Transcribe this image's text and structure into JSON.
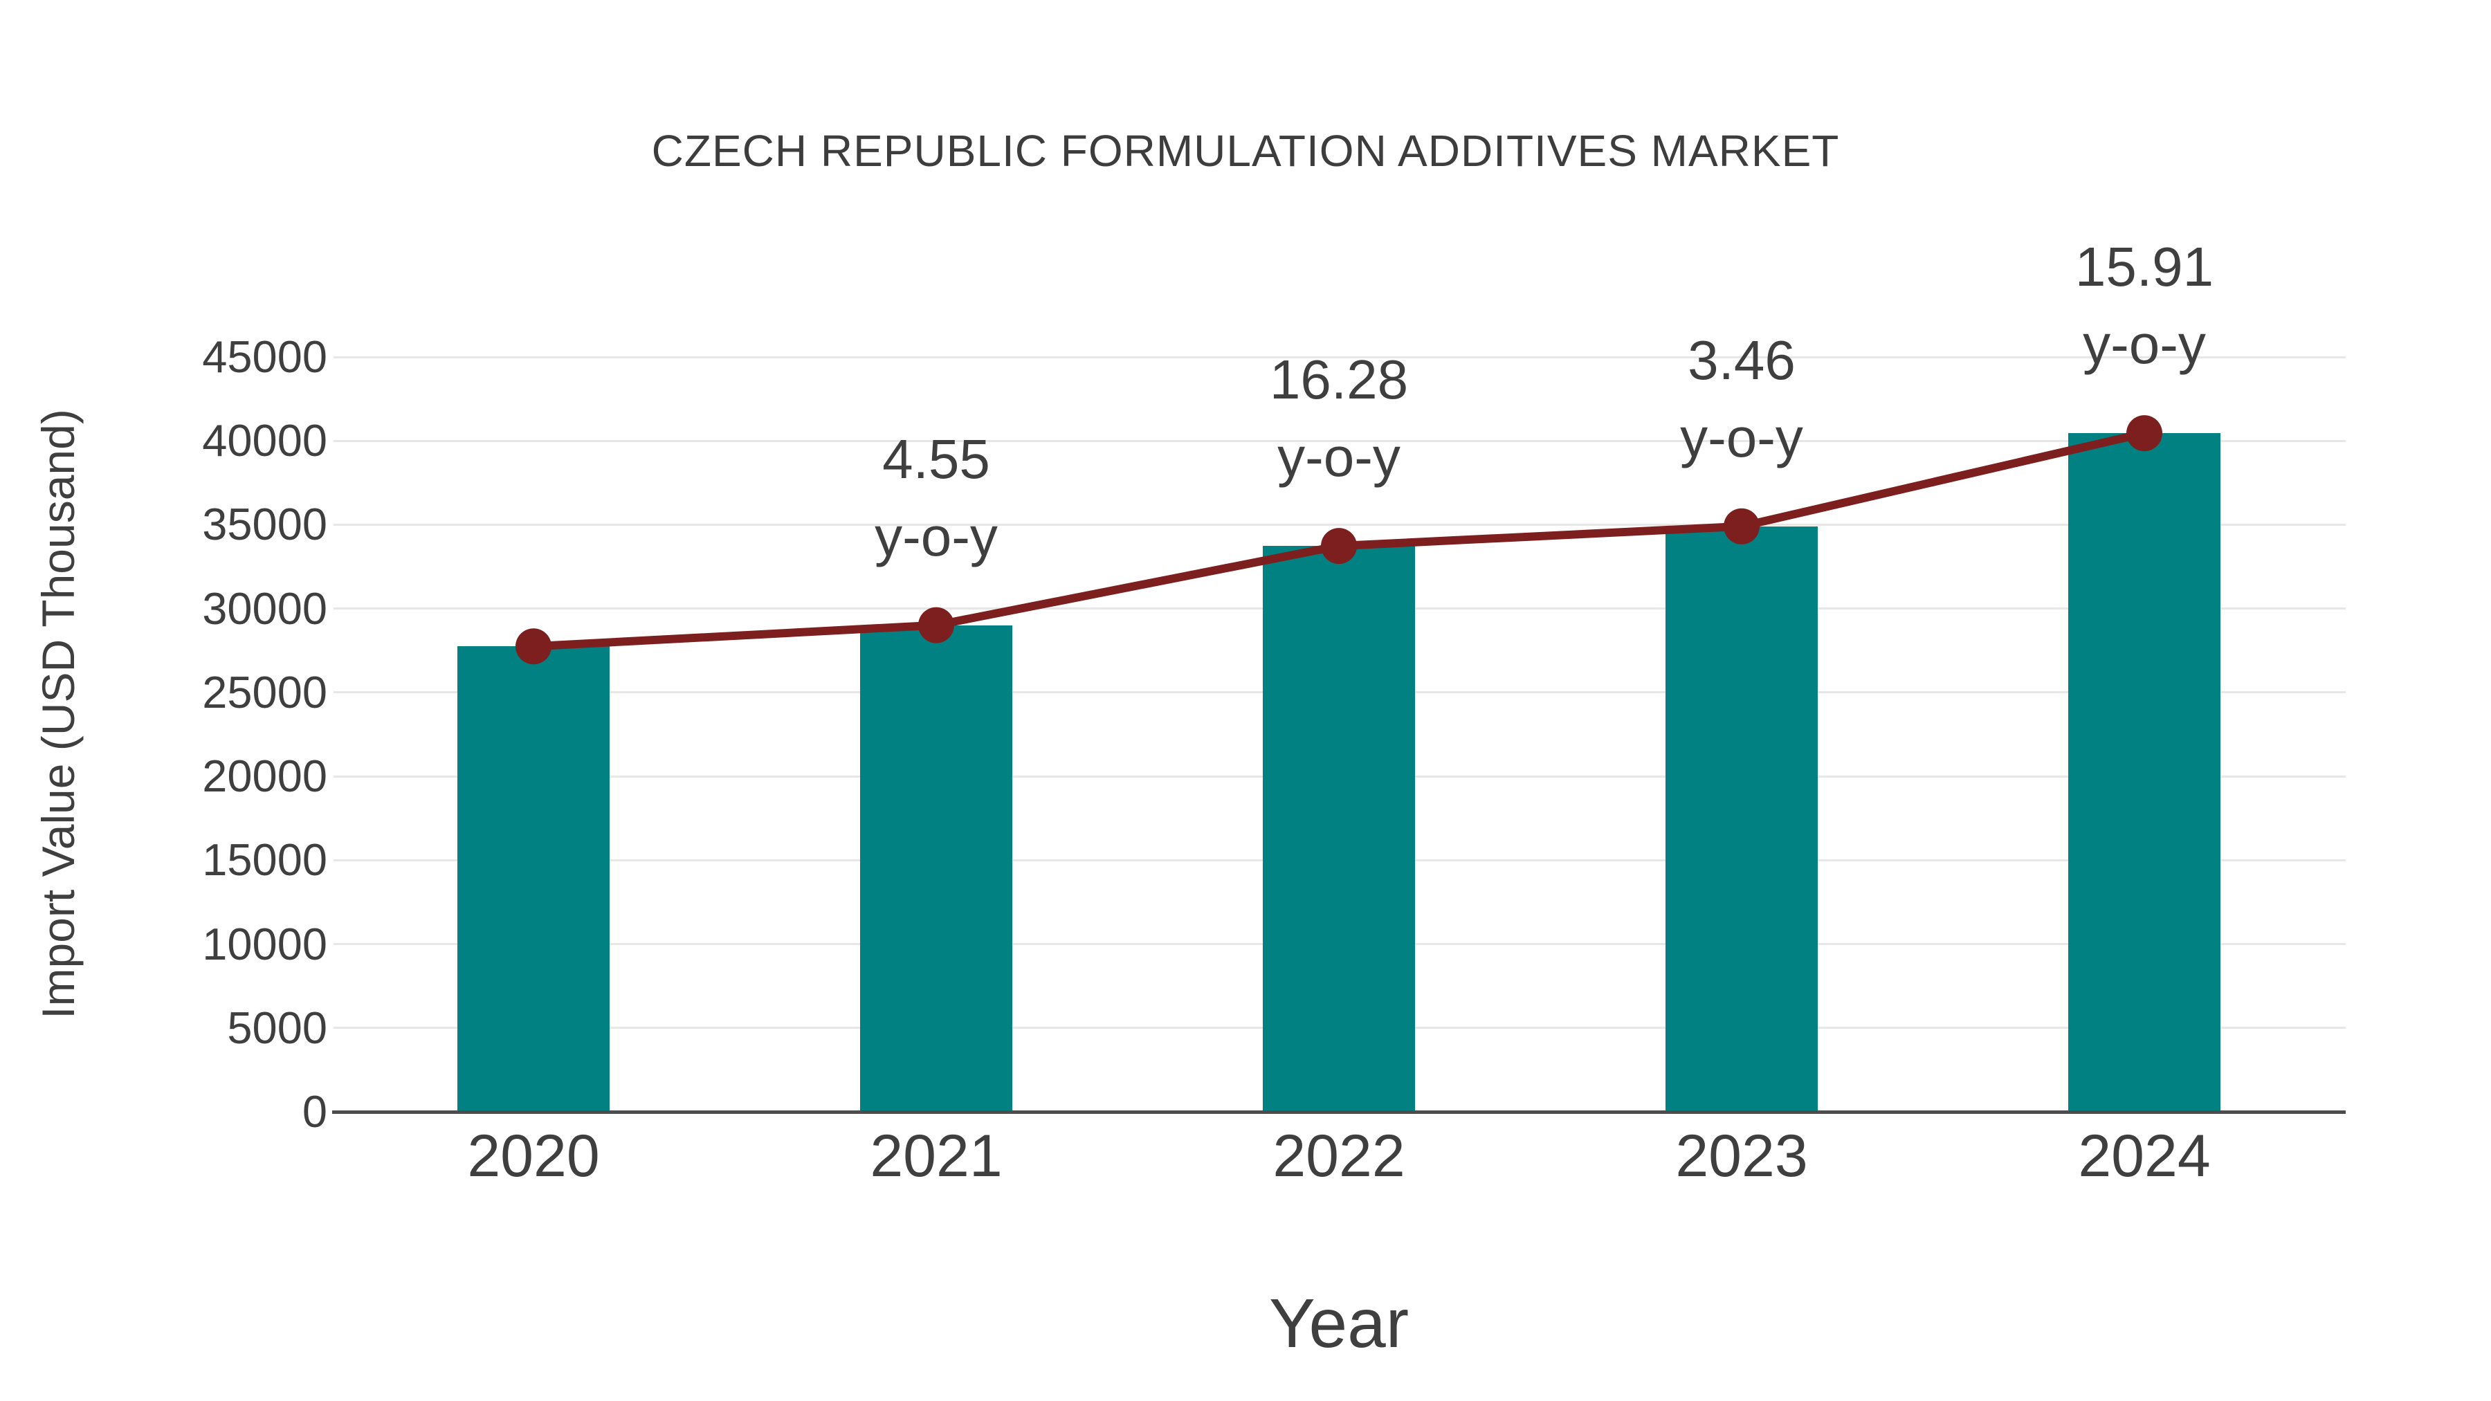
{
  "title": "CZECH REPUBLIC FORMULATION ADDITIVES MARKET",
  "colors": {
    "background": "#ffffff",
    "bar": "#018181",
    "line": "#7e1f1f",
    "marker": "#7e1f1f",
    "text": "#3f3f3f",
    "gridline": "#e7e7e7",
    "axis_line": "#4d4d4d"
  },
  "chart_data": {
    "type": "bar",
    "subtype": "bar-with-line-overlay",
    "title": "CZECH REPUBLIC FORMULATION ADDITIVES MARKET",
    "xlabel": "Year",
    "ylabel": "Import Value (USD Thousand)",
    "categories": [
      "2020",
      "2021",
      "2022",
      "2023",
      "2024"
    ],
    "series": [
      {
        "name": "Import Value (bars)",
        "type": "bar",
        "values": [
          27750,
          29013,
          33736,
          34903,
          40456
        ]
      },
      {
        "name": "Import Value (line markers)",
        "type": "line",
        "values": [
          27750,
          29013,
          33736,
          34903,
          40456
        ]
      }
    ],
    "annotations": [
      {
        "category": "2021",
        "line1": "4.55",
        "line2": "y-o-y"
      },
      {
        "category": "2022",
        "line1": "16.28",
        "line2": "y-o-y"
      },
      {
        "category": "2023",
        "line1": "3.46",
        "line2": "y-o-y"
      },
      {
        "category": "2024",
        "line1": "15.91",
        "line2": "y-o-y"
      }
    ],
    "yoy_growth_percent": [
      null,
      4.55,
      16.28,
      3.46,
      15.91
    ],
    "ylim": [
      0,
      45000
    ],
    "ytick_step": 5000,
    "yticks": [
      45000,
      40000,
      35000,
      30000,
      25000,
      20000,
      15000,
      10000,
      5000,
      0
    ],
    "ytick_labels": [
      "45000",
      "40000",
      "35000",
      "30000",
      "25000",
      "20000",
      "15000",
      "10000",
      "5000",
      "0"
    ],
    "grid": "horizontal",
    "legend": "none"
  }
}
